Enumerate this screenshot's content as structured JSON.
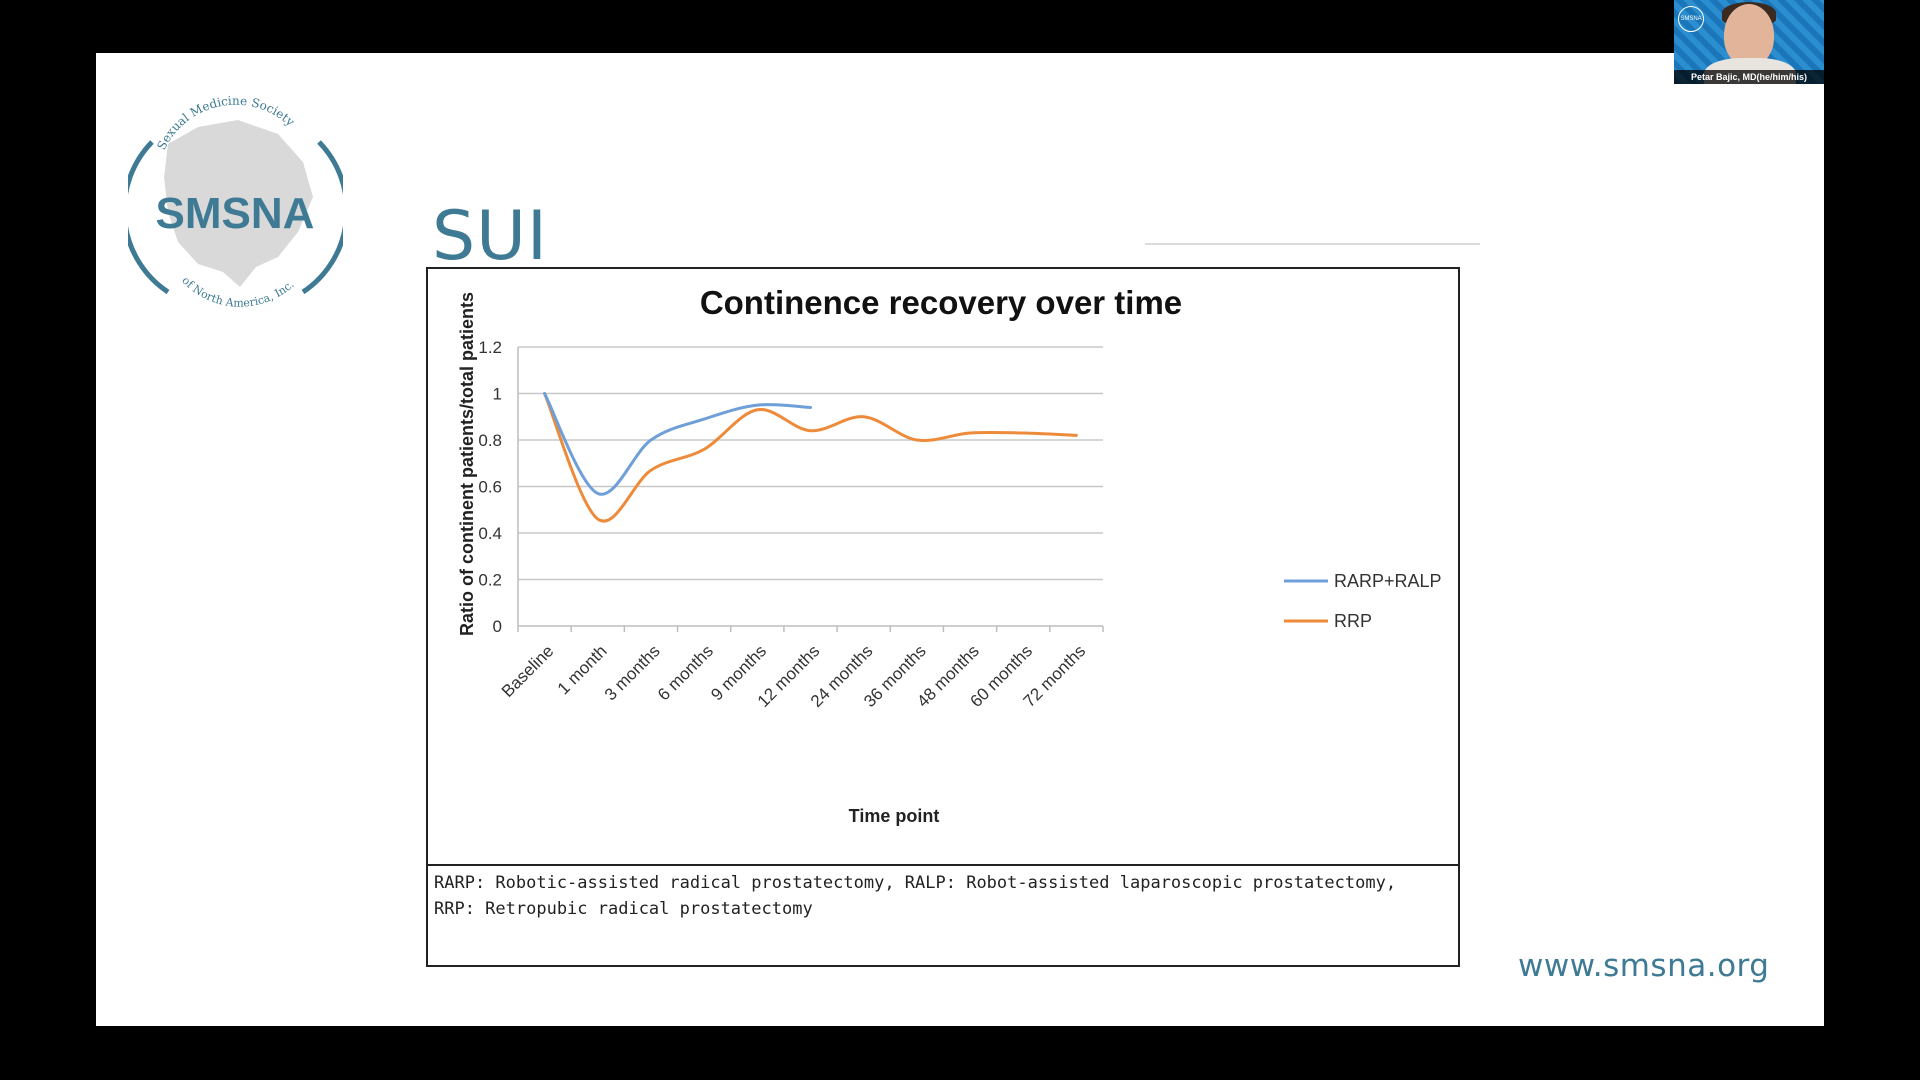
{
  "slide": {
    "title": "SUI",
    "url": "www.smsna.org",
    "logo": {
      "name": "SMSNA",
      "top_text": "Sexual Medicine Society",
      "bottom_text": "of North America, Inc."
    },
    "caption_lines": [
      "RARP: Robotic-assisted radical prostatectomy, RALP: Robot-assisted laparoscopic prostatectomy,",
      "RRP: Retropubic radical prostatectomy"
    ]
  },
  "video": {
    "participant_name": "Petar Bajic, MD(he/him/his)",
    "badge": "SMSNA"
  },
  "colors": {
    "accent": "#3e7a93",
    "rarp": "#6f9fd8",
    "rrp": "#ed8b3b"
  },
  "chart_data": {
    "type": "line",
    "title": "Continence recovery over time",
    "xlabel": "Time point",
    "ylabel": "Ratio of continent patients/total patients",
    "categories": [
      "Baseline",
      "1 month",
      "3 months",
      "6 months",
      "9 months",
      "12 months",
      "24 months",
      "36 months",
      "48 months",
      "60 months",
      "72 months"
    ],
    "ylim": [
      0,
      1.2
    ],
    "yticks": [
      "0",
      "0.2",
      "0.4",
      "0.6",
      "0.8",
      "1",
      "1.2"
    ],
    "grid": true,
    "legend_position": "right",
    "series": [
      {
        "name": "RARP+RALP",
        "color": "#6f9fd8",
        "values": [
          1,
          0.57,
          0.8,
          0.89,
          0.95,
          0.94,
          null,
          null,
          null,
          null,
          null
        ]
      },
      {
        "name": "RRP",
        "color": "#ed8b3b",
        "values": [
          1,
          0.46,
          0.67,
          0.76,
          0.93,
          0.84,
          0.9,
          0.8,
          0.83,
          0.83,
          0.82
        ]
      }
    ]
  }
}
